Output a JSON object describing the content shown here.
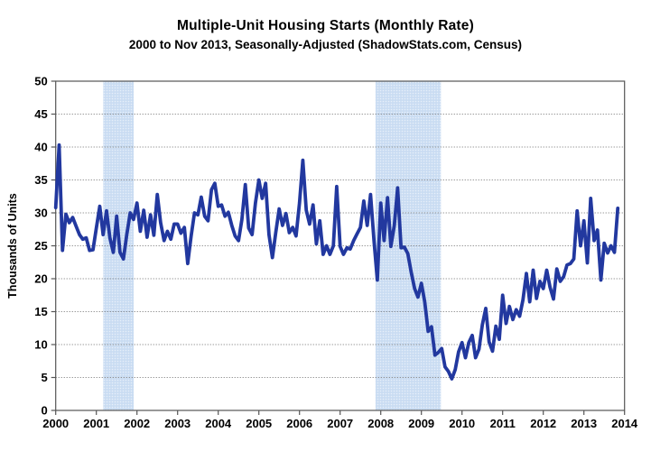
{
  "title": "Multiple-Unit Housing Starts (Monthly Rate)",
  "subtitle": "2000 to Nov 2013, Seasonally-Adjusted (ShadowStats.com, Census)",
  "chart_data": {
    "type": "line",
    "title": "Multiple-Unit Housing Starts (Monthly Rate)",
    "subtitle": "2000 to Nov 2013, Seasonally-Adjusted (ShadowStats.com, Census)",
    "xlabel": "",
    "ylabel": "Thousands of Units",
    "ylim": [
      0,
      50
    ],
    "ytick_step": 5,
    "yticks": [
      "0",
      "5",
      "10",
      "15",
      "20",
      "25",
      "30",
      "35",
      "40",
      "45",
      "50"
    ],
    "xticks": [
      "2000",
      "2001",
      "2002",
      "2003",
      "2004",
      "2005",
      "2006",
      "2007",
      "2008",
      "2009",
      "2010",
      "2011",
      "2012",
      "2013",
      "2014"
    ],
    "x_range_years": [
      2000,
      2014
    ],
    "grid": "horizontal-dotted",
    "legend_position": "none",
    "x_start": {
      "year": 2000,
      "month": "Jan"
    },
    "x_end": {
      "year": 2013,
      "month": "Nov"
    },
    "recession_bands_years": [
      {
        "from": 2001.17,
        "to": 2001.92
      },
      {
        "from": 2007.87,
        "to": 2009.48
      }
    ],
    "series": [
      {
        "name": "Multiple-unit housing starts, thousands of units per month",
        "monthly_values": [
          30.8,
          40.3,
          24.3,
          29.8,
          28.5,
          29.3,
          28.0,
          26.7,
          26.0,
          26.2,
          24.3,
          24.4,
          27.7,
          31.0,
          26.7,
          30.3,
          26.2,
          24.0,
          29.5,
          24.0,
          23.0,
          26.7,
          30.0,
          29.0,
          31.5,
          27.2,
          30.4,
          26.3,
          29.7,
          26.6,
          32.8,
          28.5,
          25.8,
          27.2,
          26.0,
          28.3,
          28.3,
          26.9,
          27.8,
          22.3,
          26.5,
          30.0,
          29.7,
          32.4,
          29.5,
          28.8,
          33.5,
          34.5,
          31.0,
          31.2,
          29.5,
          30.1,
          28.1,
          26.5,
          25.8,
          29.0,
          34.3,
          27.7,
          26.7,
          31.5,
          35.0,
          32.2,
          34.5,
          26.7,
          23.2,
          27.0,
          30.6,
          28.1,
          29.9,
          27.0,
          27.8,
          26.5,
          31.5,
          38.0,
          30.4,
          28.3,
          31.2,
          25.3,
          28.8,
          23.7,
          25.0,
          23.7,
          25.0,
          34.0,
          24.9,
          23.7,
          24.7,
          24.5,
          25.8,
          26.8,
          27.8,
          31.8,
          28.1,
          32.8,
          25.8,
          19.8,
          31.5,
          25.8,
          32.3,
          24.9,
          28.1,
          33.8,
          24.7,
          24.8,
          23.8,
          21.0,
          18.5,
          17.2,
          19.3,
          16.5,
          12.0,
          12.7,
          8.4,
          8.8,
          9.4,
          6.6,
          5.9,
          4.8,
          6.2,
          8.9,
          10.3,
          8.0,
          10.3,
          11.4,
          8.0,
          9.3,
          13.0,
          15.5,
          10.4,
          9.0,
          12.8,
          10.8,
          17.5,
          13.2,
          15.8,
          13.8,
          15.3,
          14.3,
          16.8,
          20.8,
          16.5,
          21.3,
          17.0,
          19.6,
          18.5,
          21.3,
          18.7,
          16.9,
          21.5,
          19.6,
          20.3,
          22.1,
          22.3,
          23.0,
          30.3,
          25.0,
          28.8,
          22.4,
          32.2,
          25.8,
          27.4,
          19.8,
          25.4,
          23.9,
          25.0,
          24.0,
          30.7
        ]
      }
    ],
    "colors": {
      "line": "#22389F",
      "recession_band": "#C9DCF2",
      "band_dot": "#FFFFFF",
      "grid": "#707070",
      "frame": "#555555",
      "text": "#000000",
      "background": "#FFFFFF"
    }
  }
}
